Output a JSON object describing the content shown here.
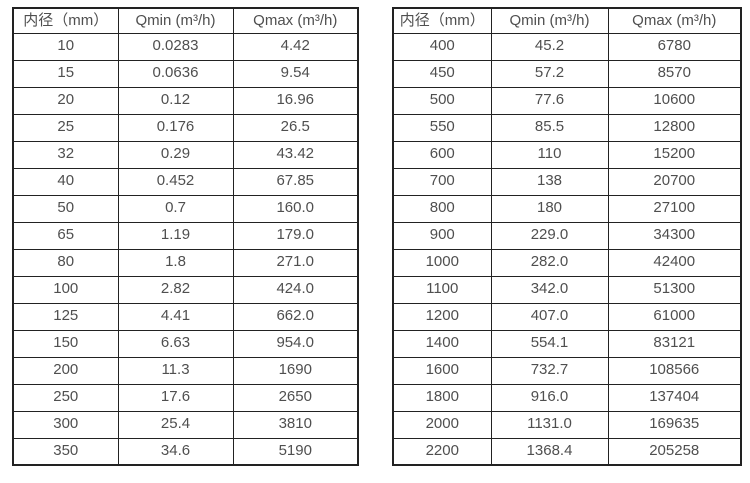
{
  "tables": [
    {
      "id": "flow-table-small-diameters",
      "headers": [
        "内径（mm）",
        "Qmin (m³/h)",
        "Qmax (m³/h)"
      ],
      "rows": [
        [
          "10",
          "0.0283",
          "4.42"
        ],
        [
          "15",
          "0.0636",
          "9.54"
        ],
        [
          "20",
          "0.12",
          "16.96"
        ],
        [
          "25",
          "0.176",
          "26.5"
        ],
        [
          "32",
          "0.29",
          "43.42"
        ],
        [
          "40",
          "0.452",
          "67.85"
        ],
        [
          "50",
          "0.7",
          "160.0"
        ],
        [
          "65",
          "1.19",
          "179.0"
        ],
        [
          "80",
          "1.8",
          "271.0"
        ],
        [
          "100",
          "2.82",
          "424.0"
        ],
        [
          "125",
          "4.41",
          "662.0"
        ],
        [
          "150",
          "6.63",
          "954.0"
        ],
        [
          "200",
          "11.3",
          "1690"
        ],
        [
          "250",
          "17.6",
          "2650"
        ],
        [
          "300",
          "25.4",
          "3810"
        ],
        [
          "350",
          "34.6",
          "5190"
        ]
      ]
    },
    {
      "id": "flow-table-large-diameters",
      "headers": [
        "内径（mm）",
        "Qmin (m³/h)",
        "Qmax (m³/h)"
      ],
      "rows": [
        [
          "400",
          "45.2",
          "6780"
        ],
        [
          "450",
          "57.2",
          "8570"
        ],
        [
          "500",
          "77.6",
          "10600"
        ],
        [
          "550",
          "85.5",
          "12800"
        ],
        [
          "600",
          "110",
          "15200"
        ],
        [
          "700",
          "138",
          "20700"
        ],
        [
          "800",
          "180",
          "27100"
        ],
        [
          "900",
          "229.0",
          "34300"
        ],
        [
          "1000",
          "282.0",
          "42400"
        ],
        [
          "1100",
          "342.0",
          "51300"
        ],
        [
          "1200",
          "407.0",
          "61000"
        ],
        [
          "1400",
          "554.1",
          "83121"
        ],
        [
          "1600",
          "732.7",
          "108566"
        ],
        [
          "1800",
          "916.0",
          "137404"
        ],
        [
          "2000",
          "1131.0",
          "169635"
        ],
        [
          "2200",
          "1368.4",
          "205258"
        ]
      ]
    }
  ],
  "colors": {
    "text": "#4f4f4f",
    "border": "#222222",
    "background": "#ffffff"
  }
}
